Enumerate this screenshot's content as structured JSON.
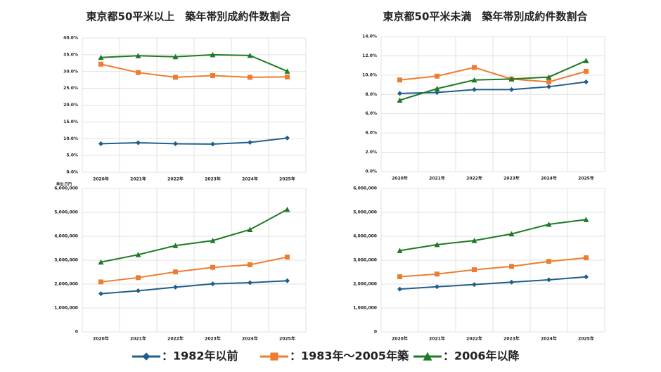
{
  "chart_data": [
    {
      "type": "line",
      "title": "東京都50平米以上　築年帯別成約件数割合",
      "categories": [
        "2020年",
        "2021年",
        "2022年",
        "2023年",
        "2024年",
        "2025年"
      ],
      "ylim": [
        0,
        40
      ],
      "yticks": [
        {
          "value": 0,
          "label": "0.0%"
        },
        {
          "value": 5,
          "label": "5.0%"
        },
        {
          "value": 10,
          "label": "10.0%"
        },
        {
          "value": 15,
          "label": "15.0%"
        },
        {
          "value": 20,
          "label": "20.0%"
        },
        {
          "value": 25,
          "label": "25.0%"
        },
        {
          "value": 30,
          "label": "30.0%"
        },
        {
          "value": 35,
          "label": "35.0%"
        },
        {
          "value": 40,
          "label": "40.0%"
        }
      ],
      "grid": true,
      "series": [
        {
          "values": [
            8.5,
            8.8,
            8.5,
            8.4,
            8.9,
            10.2
          ]
        },
        {
          "values": [
            32.2,
            29.7,
            28.3,
            28.8,
            28.3,
            28.4
          ]
        },
        {
          "values": [
            34.2,
            34.7,
            34.4,
            35.0,
            34.8,
            30.1
          ]
        }
      ]
    },
    {
      "type": "line",
      "title": "東京都50平米未満　築年帯別成約件数割合",
      "categories": [
        "2020年",
        "2021年",
        "2022年",
        "2023年",
        "2024年",
        "2025年"
      ],
      "ylim": [
        0,
        14
      ],
      "yticks": [
        {
          "value": 0,
          "label": "0.0%"
        },
        {
          "value": 2,
          "label": "2.0%"
        },
        {
          "value": 4,
          "label": "4.0%"
        },
        {
          "value": 6,
          "label": "6.0%"
        },
        {
          "value": 8,
          "label": "8.0%"
        },
        {
          "value": 10,
          "label": "10.0%"
        },
        {
          "value": 12,
          "label": "12.0%"
        },
        {
          "value": 14,
          "label": "14.0%"
        }
      ],
      "grid": true,
      "series": [
        {
          "values": [
            8.1,
            8.2,
            8.5,
            8.5,
            8.8,
            9.3
          ]
        },
        {
          "values": [
            9.5,
            9.9,
            10.8,
            9.6,
            9.3,
            10.4
          ]
        },
        {
          "values": [
            7.4,
            8.6,
            9.5,
            9.6,
            9.8,
            11.5
          ]
        }
      ]
    },
    {
      "type": "line",
      "unit_label": "単位:万円",
      "categories": [
        "2020年",
        "2021年",
        "2022年",
        "2023年",
        "2024年",
        "2025年"
      ],
      "ylim": [
        0,
        6000000
      ],
      "yticks": [
        0,
        {
          "value": 1000000,
          "label": "1,000,000"
        },
        {
          "value": 2000000,
          "label": "2,000,000"
        },
        {
          "value": 3000000,
          "label": "3,000,000"
        },
        {
          "value": 4000000,
          "label": "4,000,000"
        },
        {
          "value": 5000000,
          "label": "5,000,000"
        },
        {
          "value": 6000000,
          "label": "6,000,000"
        }
      ],
      "grid": true,
      "series": [
        {
          "values": [
            1600000,
            1720000,
            1870000,
            2010000,
            2060000,
            2140000
          ]
        },
        {
          "values": [
            2090000,
            2270000,
            2510000,
            2700000,
            2810000,
            3130000
          ]
        },
        {
          "values": [
            2920000,
            3230000,
            3610000,
            3820000,
            4280000,
            5120000
          ]
        }
      ]
    },
    {
      "type": "line",
      "categories": [
        "2020年",
        "2021年",
        "2022年",
        "2023年",
        "2024年",
        "2025年"
      ],
      "ylim": [
        0,
        6000000
      ],
      "yticks": [
        0,
        {
          "value": 1000000,
          "label": "1,000,000"
        },
        {
          "value": 2000000,
          "label": "2,000,000"
        },
        {
          "value": 3000000,
          "label": "3,000,000"
        },
        {
          "value": 4000000,
          "label": "4,000,000"
        },
        {
          "value": 5000000,
          "label": "5,000,000"
        },
        {
          "value": 6000000,
          "label": "6,000,000"
        }
      ],
      "grid": true,
      "series": [
        {
          "values": [
            1790000,
            1890000,
            1980000,
            2080000,
            2180000,
            2300000
          ]
        },
        {
          "values": [
            2310000,
            2420000,
            2600000,
            2740000,
            2950000,
            3100000
          ]
        },
        {
          "values": [
            3400000,
            3650000,
            3820000,
            4100000,
            4500000,
            4700000
          ]
        }
      ]
    }
  ],
  "legend": [
    {
      "name": "：1982年以前",
      "color": "#1f5f8b",
      "marker": "diamond"
    },
    {
      "name": "：1983年～2005年築",
      "color": "#ed7d31",
      "marker": "square"
    },
    {
      "name": "：2006年以降",
      "color": "#1e7a24",
      "marker": "triangle"
    }
  ]
}
